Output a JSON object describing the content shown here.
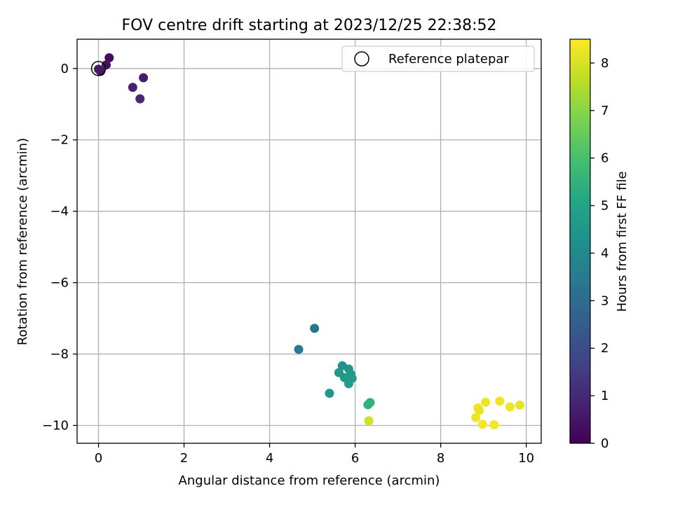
{
  "chart_data": {
    "type": "scatter",
    "title": "FOV centre drift starting at 2023/12/25 22:38:52",
    "xlabel": "Angular distance from reference (arcmin)",
    "ylabel": "Rotation from reference (arcmin)",
    "xlim": [
      -0.5,
      10.35
    ],
    "ylim": [
      -10.5,
      0.82
    ],
    "xticks": [
      0,
      2,
      4,
      6,
      8,
      10
    ],
    "xtick_labels": [
      "0",
      "2",
      "4",
      "6",
      "8",
      "10"
    ],
    "yticks": [
      0,
      -2,
      -4,
      -6,
      -8,
      -10
    ],
    "ytick_labels": [
      "0",
      "−2",
      "−4",
      "−6",
      "−8",
      "−10"
    ],
    "grid": true,
    "legend": {
      "placement": "upper-right",
      "entries": [
        "Reference platepar"
      ]
    },
    "reference_point": {
      "x": 0,
      "y": 0,
      "label": "Reference platepar"
    },
    "colorbar": {
      "label": "Hours from first FF file",
      "colormap": "viridis",
      "range": [
        0,
        8.5
      ],
      "ticks": [
        0,
        1,
        2,
        3,
        4,
        5,
        6,
        7,
        8
      ],
      "tick_labels": [
        "0",
        "1",
        "2",
        "3",
        "4",
        "5",
        "6",
        "7",
        "8"
      ]
    },
    "points": [
      {
        "x": 0.25,
        "y": 0.3,
        "hours": 0.3
      },
      {
        "x": 0.18,
        "y": 0.1,
        "hours": 0.4
      },
      {
        "x": 0.05,
        "y": -0.08,
        "hours": 0.5
      },
      {
        "x": 0.0,
        "y": -0.02,
        "hours": 0.6
      },
      {
        "x": 1.05,
        "y": -0.26,
        "hours": 0.7
      },
      {
        "x": 0.8,
        "y": -0.53,
        "hours": 0.8
      },
      {
        "x": 0.97,
        "y": -0.85,
        "hours": 0.9
      },
      {
        "x": 5.05,
        "y": -7.28,
        "hours": 3.3
      },
      {
        "x": 4.68,
        "y": -7.87,
        "hours": 3.5
      },
      {
        "x": 5.7,
        "y": -8.33,
        "hours": 4.4
      },
      {
        "x": 5.85,
        "y": -8.42,
        "hours": 4.5
      },
      {
        "x": 5.62,
        "y": -8.52,
        "hours": 4.5
      },
      {
        "x": 5.9,
        "y": -8.57,
        "hours": 4.6
      },
      {
        "x": 5.75,
        "y": -8.66,
        "hours": 4.6
      },
      {
        "x": 5.93,
        "y": -8.68,
        "hours": 4.7
      },
      {
        "x": 5.85,
        "y": -8.83,
        "hours": 4.7
      },
      {
        "x": 5.4,
        "y": -9.1,
        "hours": 4.6
      },
      {
        "x": 6.35,
        "y": -9.36,
        "hours": 5.4
      },
      {
        "x": 6.3,
        "y": -9.42,
        "hours": 5.5
      },
      {
        "x": 6.32,
        "y": -9.87,
        "hours": 7.9
      },
      {
        "x": 9.38,
        "y": -9.32,
        "hours": 8.3
      },
      {
        "x": 9.05,
        "y": -9.35,
        "hours": 8.3
      },
      {
        "x": 9.85,
        "y": -9.43,
        "hours": 8.2
      },
      {
        "x": 9.62,
        "y": -9.48,
        "hours": 8.3
      },
      {
        "x": 8.87,
        "y": -9.51,
        "hours": 8.3
      },
      {
        "x": 8.9,
        "y": -9.58,
        "hours": 8.2
      },
      {
        "x": 8.82,
        "y": -9.78,
        "hours": 8.3
      },
      {
        "x": 8.98,
        "y": -9.97,
        "hours": 8.4
      },
      {
        "x": 9.25,
        "y": -9.98,
        "hours": 8.4
      }
    ]
  }
}
